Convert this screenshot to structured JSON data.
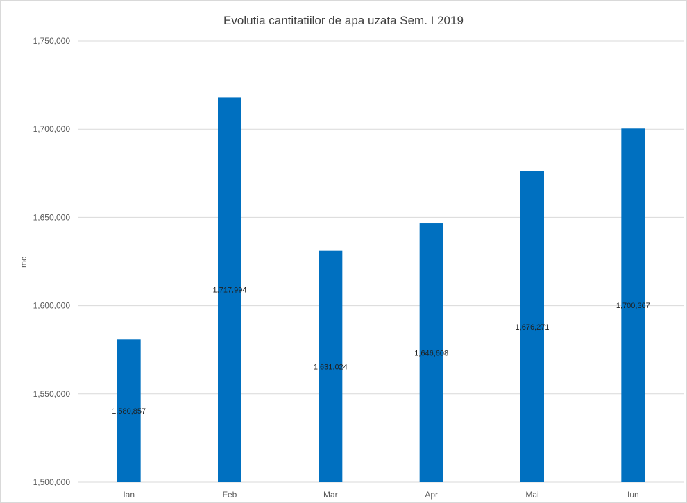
{
  "chart_data": {
    "type": "bar",
    "title": "Evolutia cantitatiilor de apa uzata Sem. I 2019",
    "xlabel": "",
    "ylabel": "mc",
    "categories": [
      "Ian",
      "Feb",
      "Mar",
      "Apr",
      "Mai",
      "Iun"
    ],
    "values": [
      1580857,
      1717994,
      1631024,
      1646608,
      1676271,
      1700367
    ],
    "value_labels": [
      "1,580,857",
      "1,717,994",
      "1,631,024",
      "1,646,608",
      "1,676,271",
      "1,700,367"
    ],
    "ylim": [
      1500000,
      1750000
    ],
    "yticks": [
      1500000,
      1550000,
      1600000,
      1650000,
      1700000,
      1750000
    ],
    "ytick_labels": [
      "1,500,000",
      "1,550,000",
      "1,600,000",
      "1,650,000",
      "1,700,000",
      "1,750,000"
    ],
    "grid": true,
    "legend": "none",
    "bar_color": "#0070c0",
    "grid_color": "#d9d9d9"
  }
}
